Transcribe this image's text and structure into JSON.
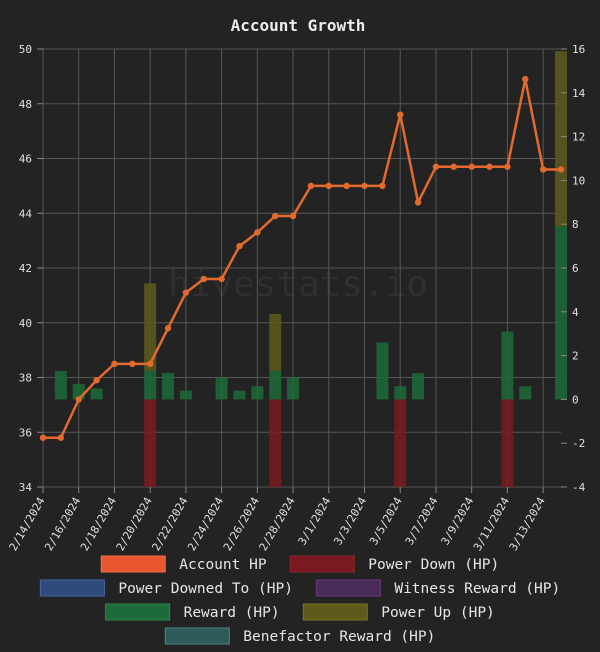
{
  "chart_data": {
    "type": "bar+line",
    "title": "Account Growth",
    "watermark": "hivestats.io",
    "x": [
      "2/14/2024",
      "2/15/2024",
      "2/16/2024",
      "2/17/2024",
      "2/18/2024",
      "2/19/2024",
      "2/20/2024",
      "2/21/2024",
      "2/22/2024",
      "2/23/2024",
      "2/24/2024",
      "2/25/2024",
      "2/26/2024",
      "2/27/2024",
      "2/28/2024",
      "2/29/2024",
      "3/1/2024",
      "3/2/2024",
      "3/3/2024",
      "3/4/2024",
      "3/5/2024",
      "3/6/2024",
      "3/7/2024",
      "3/8/2024",
      "3/9/2024",
      "3/10/2024",
      "3/11/2024",
      "3/12/2024",
      "3/13/2024",
      "3/14/2024"
    ],
    "x_tick_labels": [
      "2/14/2024",
      "2/16/2024",
      "2/18/2024",
      "2/20/2024",
      "2/22/2024",
      "2/24/2024",
      "2/26/2024",
      "2/28/2024",
      "3/1/2024",
      "3/3/2024",
      "3/5/2024",
      "3/7/2024",
      "3/9/2024",
      "3/11/2024",
      "3/13/2024"
    ],
    "y_left": {
      "ylim": [
        34,
        50
      ],
      "ticks": [
        34,
        36,
        38,
        40,
        42,
        44,
        46,
        48,
        50
      ]
    },
    "y_right": {
      "ylim": [
        -4,
        16
      ],
      "ticks": [
        -4,
        -2,
        0,
        2,
        4,
        6,
        8,
        10,
        12,
        14,
        16
      ]
    },
    "grid": true,
    "legend_position": "bottom",
    "series": [
      {
        "name": "Account HP",
        "type": "line",
        "axis": "left",
        "color": "#e36a2e",
        "values": [
          35.8,
          35.8,
          37.2,
          37.9,
          38.5,
          38.5,
          38.5,
          39.8,
          41.1,
          41.6,
          41.6,
          42.8,
          43.3,
          43.9,
          43.9,
          45.0,
          45.0,
          45.0,
          45.0,
          45.0,
          47.6,
          44.4,
          45.7,
          45.7,
          45.7,
          45.7,
          45.7,
          48.9,
          45.6,
          45.6
        ]
      },
      {
        "name": "Power Down (HP)",
        "type": "bar",
        "axis": "right",
        "color": "#7a1a20",
        "values": [
          0,
          0,
          0,
          0,
          0,
          0,
          -4,
          0,
          0,
          0,
          0,
          0,
          0,
          -4,
          0,
          0,
          0,
          0,
          0,
          0,
          -4,
          0,
          0,
          0,
          0,
          0,
          -4,
          0,
          0,
          0
        ]
      },
      {
        "name": "Power Downed To (HP)",
        "type": "bar",
        "axis": "right",
        "color": "#2e4a7a",
        "values": [
          0,
          0,
          0,
          0,
          0,
          0,
          0,
          0,
          0,
          0,
          0,
          0,
          0,
          0,
          0,
          0,
          0,
          0,
          0,
          0,
          0,
          0,
          0,
          0,
          0,
          0,
          0,
          0,
          0,
          0
        ]
      },
      {
        "name": "Witness Reward (HP)",
        "type": "bar",
        "axis": "right",
        "color": "#4a2a5a",
        "values": [
          0,
          0,
          0,
          0,
          0,
          0,
          0,
          0,
          0,
          0,
          0,
          0,
          0,
          0,
          0,
          0,
          0,
          0,
          0,
          0,
          0,
          0,
          0,
          0,
          0,
          0,
          0,
          0,
          0,
          0
        ]
      },
      {
        "name": "Reward (HP)",
        "type": "bar",
        "axis": "right",
        "color": "#1d6b3a",
        "values": [
          0,
          1.3,
          0.7,
          0.5,
          0,
          0,
          1.3,
          1.2,
          0.4,
          0,
          1.0,
          0.4,
          0.6,
          1.3,
          1.0,
          0,
          0,
          0,
          0,
          2.6,
          0.6,
          1.2,
          0,
          0,
          0,
          0,
          3.1,
          0.6,
          0,
          7.9
        ]
      },
      {
        "name": "Power Up (HP)",
        "type": "bar",
        "axis": "right",
        "color": "#5e5a1c",
        "values": [
          0,
          0,
          0,
          0,
          0,
          0,
          4.0,
          0,
          0,
          0,
          0,
          0,
          0,
          2.6,
          0,
          0,
          0,
          0,
          0,
          0,
          0,
          0,
          0,
          0,
          0,
          0,
          0,
          0,
          0,
          8.0
        ]
      },
      {
        "name": "Benefactor Reward (HP)",
        "type": "bar",
        "axis": "right",
        "color": "#2d5a56",
        "values": [
          0,
          0,
          0,
          0,
          0,
          0,
          0,
          0,
          0,
          0,
          0,
          0,
          0,
          0,
          0,
          0,
          0,
          0,
          0,
          0,
          0,
          0,
          0,
          0,
          0,
          0,
          0,
          0,
          0,
          0
        ]
      }
    ]
  },
  "legend": {
    "items": [
      {
        "label": "Account HP",
        "fill": "#e8552e",
        "stroke": "#f07050"
      },
      {
        "label": "Power Down (HP)",
        "fill": "#7a1a20",
        "stroke": "#8a2a30"
      },
      {
        "label": "Power Downed To (HP)",
        "fill": "#2e4a7a",
        "stroke": "#4a6aa0"
      },
      {
        "label": "Witness Reward (HP)",
        "fill": "#4a2a5a",
        "stroke": "#6a3a7a"
      },
      {
        "label": "Reward (HP)",
        "fill": "#1d6b3a",
        "stroke": "#2a8a4a"
      },
      {
        "label": "Power Up (HP)",
        "fill": "#5e5a1c",
        "stroke": "#7a7420"
      },
      {
        "label": "Benefactor Reward (HP)",
        "fill": "#2d5a56",
        "stroke": "#4a8a84"
      }
    ]
  }
}
